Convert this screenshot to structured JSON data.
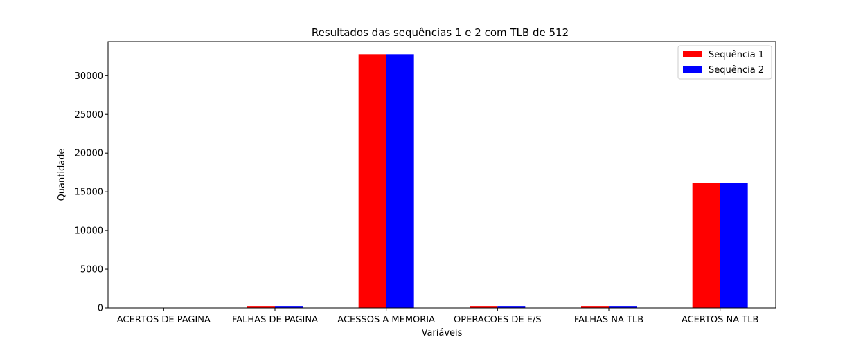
{
  "chart_data": {
    "type": "bar",
    "title": "Resultados das sequências 1 e 2 com TLB de 512",
    "xlabel": "Variáveis",
    "ylabel": "Quantidade",
    "categories": [
      "ACERTOS DE PAGINA",
      "FALHAS DE PAGINA",
      "ACESSOS A MEMORIA",
      "OPERACOES DE E/S",
      "FALHAS NA TLB",
      "ACERTOS NA TLB"
    ],
    "series": [
      {
        "name": "Sequência 1",
        "color": "#ff0000",
        "values": [
          0,
          256,
          32768,
          256,
          256,
          16128
        ]
      },
      {
        "name": "Sequência 2",
        "color": "#0000ff",
        "values": [
          0,
          256,
          32768,
          256,
          256,
          16128
        ]
      }
    ],
    "ylim": [
      0,
      34406
    ],
    "yticks": [
      0,
      5000,
      10000,
      15000,
      20000,
      25000,
      30000
    ],
    "grid": false,
    "legend": "top-right"
  }
}
